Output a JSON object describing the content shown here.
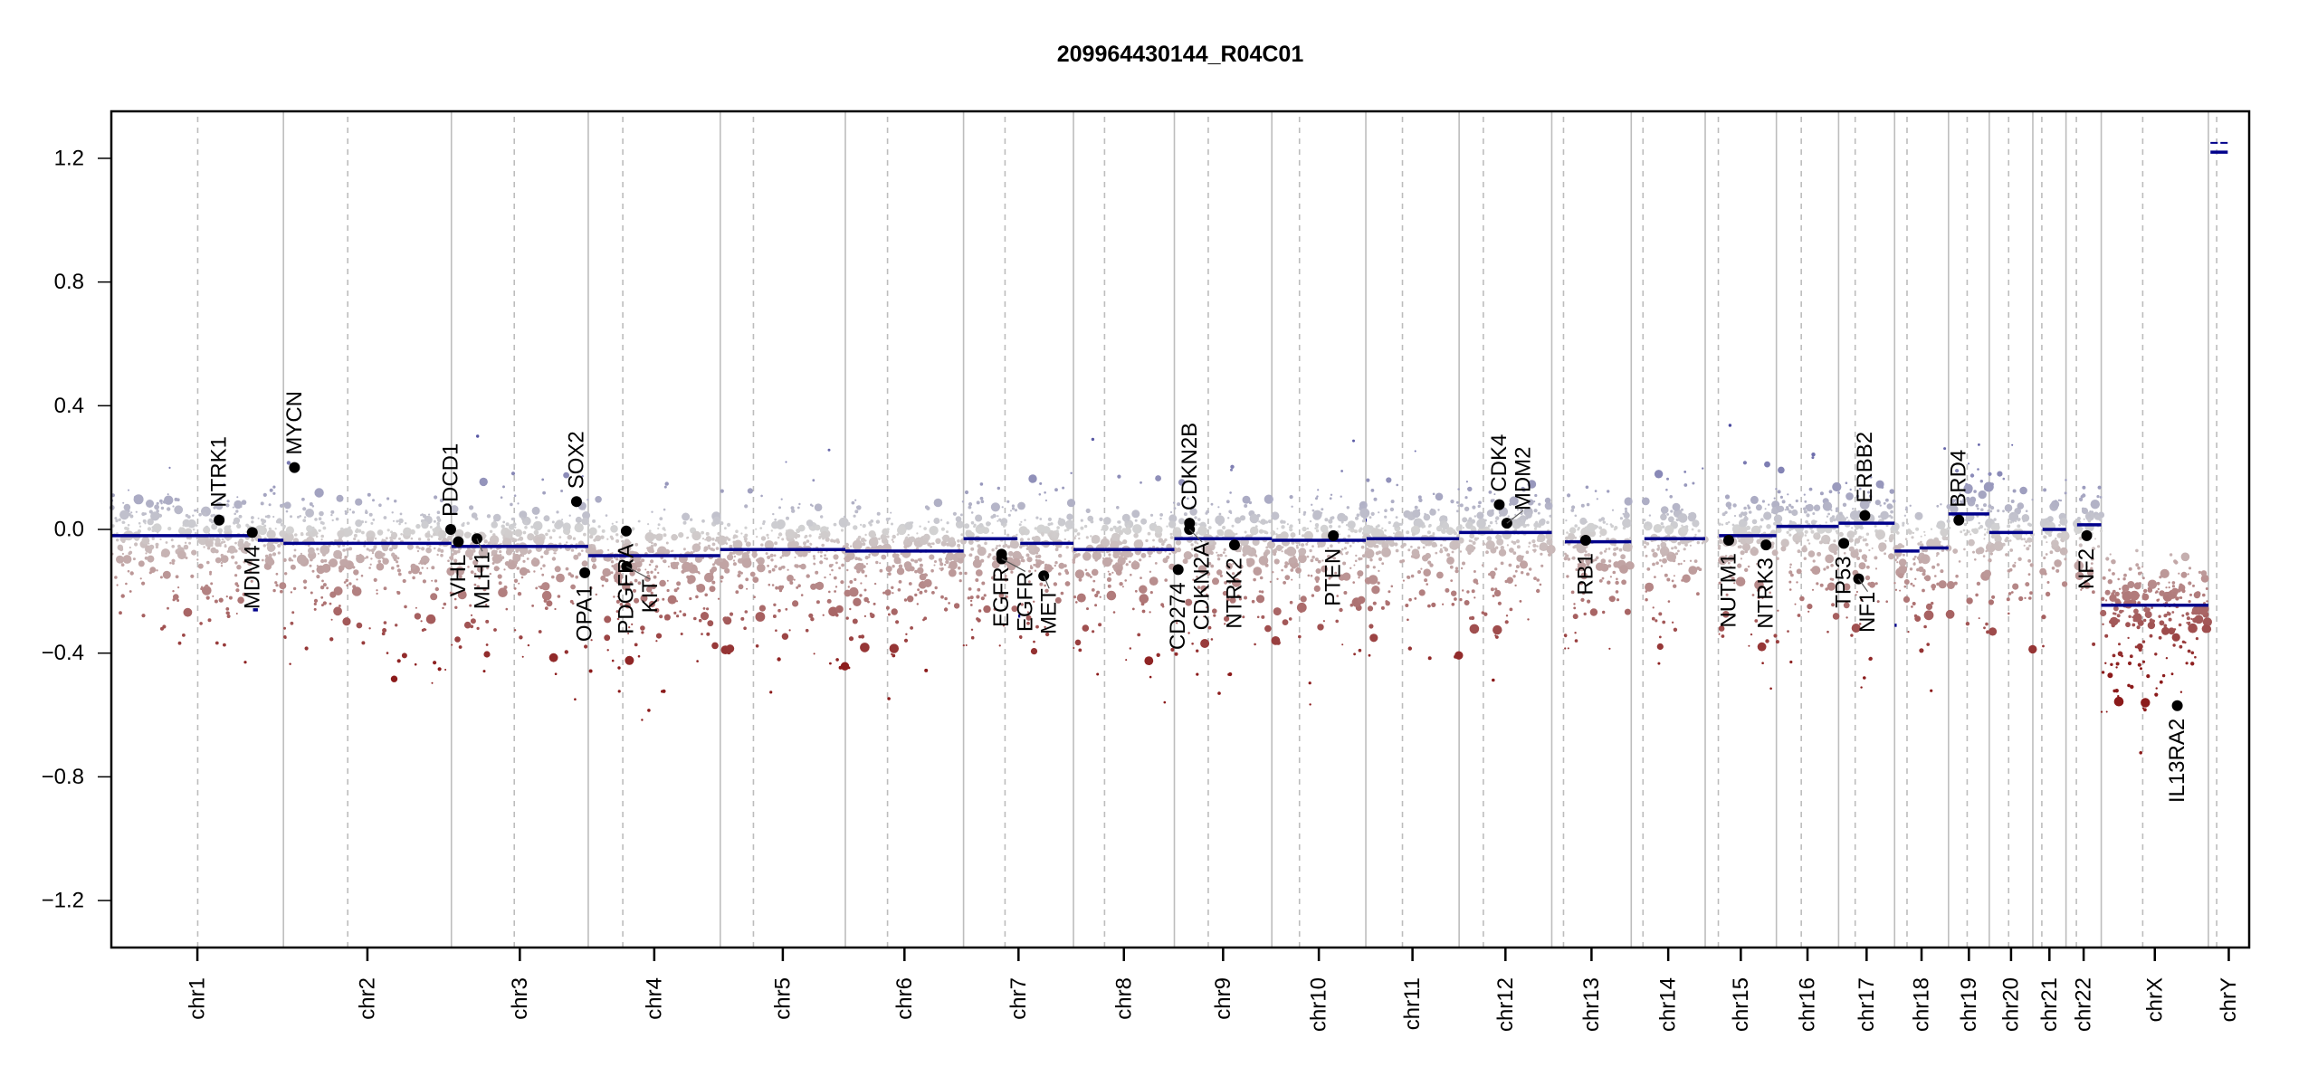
{
  "chart_data": {
    "type": "scatter",
    "title": "209964430144_R04C01",
    "xlabel": "",
    "ylabel": "",
    "ylim": [
      -1.352,
      1.352
    ],
    "yticks": [
      "1.2",
      "0.8",
      "0.4",
      "0.0",
      "-0.4",
      "-0.8",
      "-1.2"
    ],
    "ytick_values": [
      1.2,
      0.8,
      0.4,
      0.0,
      -0.4,
      -0.8,
      -1.2
    ],
    "grid": false,
    "colors": {
      "segment": "#00008B",
      "gain": "#1a1a8c",
      "neutral": "#d3d3d3",
      "loss": "#8b1a1a",
      "boundary": "#bdbdbd",
      "centromere": "#bdbdbd"
    },
    "chromosomes": [
      {
        "name": "chr1",
        "length_mb": 249,
        "centromere_mb": 125
      },
      {
        "name": "chr2",
        "length_mb": 243,
        "centromere_mb": 93
      },
      {
        "name": "chr3",
        "length_mb": 198,
        "centromere_mb": 91
      },
      {
        "name": "chr4",
        "length_mb": 191,
        "centromere_mb": 50
      },
      {
        "name": "chr5",
        "length_mb": 181,
        "centromere_mb": 48
      },
      {
        "name": "chr6",
        "length_mb": 171,
        "centromere_mb": 61
      },
      {
        "name": "chr7",
        "length_mb": 159,
        "centromere_mb": 60
      },
      {
        "name": "chr8",
        "length_mb": 146,
        "centromere_mb": 45
      },
      {
        "name": "chr9",
        "length_mb": 141,
        "centromere_mb": 49
      },
      {
        "name": "chr10",
        "length_mb": 136,
        "centromere_mb": 40
      },
      {
        "name": "chr11",
        "length_mb": 135,
        "centromere_mb": 53
      },
      {
        "name": "chr12",
        "length_mb": 134,
        "centromere_mb": 35
      },
      {
        "name": "chr13",
        "length_mb": 115,
        "centromere_mb": 17
      },
      {
        "name": "chr14",
        "length_mb": 107,
        "centromere_mb": 17
      },
      {
        "name": "chr15",
        "length_mb": 103,
        "centromere_mb": 19
      },
      {
        "name": "chr16",
        "length_mb": 90,
        "centromere_mb": 36
      },
      {
        "name": "chr17",
        "length_mb": 81,
        "centromere_mb": 24
      },
      {
        "name": "chr18",
        "length_mb": 78,
        "centromere_mb": 18
      },
      {
        "name": "chr19",
        "length_mb": 59,
        "centromere_mb": 27
      },
      {
        "name": "chr20",
        "length_mb": 63,
        "centromere_mb": 28
      },
      {
        "name": "chr21",
        "length_mb": 48,
        "centromere_mb": 13
      },
      {
        "name": "chr22",
        "length_mb": 51,
        "centromere_mb": 15
      },
      {
        "name": "chrX",
        "length_mb": 155,
        "centromere_mb": 60
      },
      {
        "name": "chrY",
        "length_mb": 59,
        "centromere_mb": 12
      }
    ],
    "segments": [
      {
        "chr": "chr1",
        "start": 0,
        "end": 205,
        "value": -0.02
      },
      {
        "chr": "chr1",
        "start": 205,
        "end": 212,
        "value": -0.26
      },
      {
        "chr": "chr1",
        "start": 212,
        "end": 249,
        "value": -0.035
      },
      {
        "chr": "chr2",
        "start": 0,
        "end": 243,
        "value": -0.045
      },
      {
        "chr": "chr3",
        "start": 0,
        "end": 198,
        "value": -0.055
      },
      {
        "chr": "chr4",
        "start": 0,
        "end": 191,
        "value": -0.085
      },
      {
        "chr": "chr5",
        "start": 0,
        "end": 181,
        "value": -0.065
      },
      {
        "chr": "chr6",
        "start": 0,
        "end": 171,
        "value": -0.07
      },
      {
        "chr": "chr7",
        "start": 0,
        "end": 78,
        "value": -0.03
      },
      {
        "chr": "chr7",
        "start": 79,
        "end": 82,
        "value": -0.28
      },
      {
        "chr": "chr7",
        "start": 82,
        "end": 159,
        "value": -0.045
      },
      {
        "chr": "chr8",
        "start": 0,
        "end": 146,
        "value": -0.065
      },
      {
        "chr": "chr9",
        "start": 0,
        "end": 141,
        "value": -0.03
      },
      {
        "chr": "chr10",
        "start": 0,
        "end": 136,
        "value": -0.035
      },
      {
        "chr": "chr11",
        "start": 0,
        "end": 1,
        "value": 0.03
      },
      {
        "chr": "chr11",
        "start": 1,
        "end": 135,
        "value": -0.03
      },
      {
        "chr": "chr12",
        "start": 0,
        "end": 134,
        "value": -0.01
      },
      {
        "chr": "chr13",
        "start": 19,
        "end": 115,
        "value": -0.04
      },
      {
        "chr": "chr14",
        "start": 19,
        "end": 107,
        "value": -0.03
      },
      {
        "chr": "chr15",
        "start": 20,
        "end": 103,
        "value": -0.02
      },
      {
        "chr": "chr16",
        "start": 0,
        "end": 90,
        "value": 0.01
      },
      {
        "chr": "chr17",
        "start": 0,
        "end": 81,
        "value": 0.02
      },
      {
        "chr": "chr18",
        "start": 0,
        "end": 36,
        "value": -0.07
      },
      {
        "chr": "chr18",
        "start": 0,
        "end": 3,
        "value": -0.31
      },
      {
        "chr": "chr18",
        "start": 36,
        "end": 78,
        "value": -0.06
      },
      {
        "chr": "chr19",
        "start": 0,
        "end": 59,
        "value": 0.05
      },
      {
        "chr": "chr20",
        "start": 0,
        "end": 63,
        "value": -0.01
      },
      {
        "chr": "chr21",
        "start": 14,
        "end": 48,
        "value": 0.0
      },
      {
        "chr": "chr22",
        "start": 16,
        "end": 51,
        "value": 0.015
      },
      {
        "chrX": true,
        "chr": "chrX",
        "start": 0,
        "end": 155,
        "value": -0.245
      },
      {
        "chr": "chrY",
        "start": 3,
        "end": 28,
        "value": 1.22
      },
      {
        "chr": "chrY",
        "start": 3,
        "end": 28,
        "value": 1.25
      }
    ],
    "genes": [
      {
        "name": "NTRK1",
        "chr": "chr1",
        "pos": 156,
        "value": 0.03,
        "label": "above"
      },
      {
        "name": "MDM4",
        "chr": "chr1",
        "pos": 204,
        "value": -0.01,
        "label": "below"
      },
      {
        "name": "MYCN",
        "chr": "chr2",
        "pos": 16,
        "value": 0.2,
        "label": "above"
      },
      {
        "name": "PDCD1",
        "chr": "chr2",
        "pos": 242,
        "value": 0.0,
        "label": "above"
      },
      {
        "name": "VHL",
        "chr": "chr3",
        "pos": 10,
        "value": -0.04,
        "label": "below"
      },
      {
        "name": "MLH1",
        "chr": "chr3",
        "pos": 37,
        "value": -0.03,
        "label": "below"
      },
      {
        "name": "SOX2",
        "chr": "chr3",
        "pos": 181,
        "value": 0.09,
        "label": "above"
      },
      {
        "name": "OPA1",
        "chr": "chr3",
        "pos": 193,
        "value": -0.14,
        "label": "below"
      },
      {
        "name": "PDGFRA",
        "chr": "chr4",
        "pos": 55,
        "value": -0.005,
        "label": "below"
      },
      {
        "name": "KIT",
        "chr": "chr4",
        "pos": 55.5,
        "value": -0.12,
        "label": "below"
      },
      {
        "name": "EGFR",
        "chr": "chr7",
        "pos": 55,
        "value": -0.08,
        "label": "below"
      },
      {
        "name": "EGFR",
        "chr": "chr7",
        "pos": 55.3,
        "value": -0.095,
        "label": "below"
      },
      {
        "name": "MET",
        "chr": "chr7",
        "pos": 116,
        "value": -0.15,
        "label": "below"
      },
      {
        "name": "CD274",
        "chr": "chr9",
        "pos": 5.5,
        "value": -0.13,
        "label": "below"
      },
      {
        "name": "CDKN2A",
        "chr": "chr9",
        "pos": 21.9,
        "value": 0.0,
        "label": "below"
      },
      {
        "name": "CDKN2B",
        "chr": "chr9",
        "pos": 22,
        "value": 0.02,
        "label": "above"
      },
      {
        "name": "NTRK2",
        "chr": "chr9",
        "pos": 87,
        "value": -0.05,
        "label": "below"
      },
      {
        "name": "PTEN",
        "chr": "chr10",
        "pos": 89,
        "value": -0.02,
        "label": "below"
      },
      {
        "name": "CDK4",
        "chr": "chr12",
        "pos": 58,
        "value": 0.08,
        "label": "above"
      },
      {
        "name": "MDM2",
        "chr": "chr12",
        "pos": 69,
        "value": 0.02,
        "label": "above"
      },
      {
        "name": "RB1",
        "chr": "chr13",
        "pos": 49,
        "value": -0.035,
        "label": "below"
      },
      {
        "name": "NUTM1",
        "chr": "chr15",
        "pos": 34,
        "value": -0.035,
        "label": "below"
      },
      {
        "name": "NTRK3",
        "chr": "chr15",
        "pos": 88,
        "value": -0.05,
        "label": "below"
      },
      {
        "name": "TP53",
        "chr": "chr17",
        "pos": 7.5,
        "value": -0.045,
        "label": "below"
      },
      {
        "name": "NF1",
        "chr": "chr17",
        "pos": 29,
        "value": -0.16,
        "label": "below"
      },
      {
        "name": "ERBB2",
        "chr": "chr17",
        "pos": 38,
        "value": 0.045,
        "label": "above"
      },
      {
        "name": "BRD4",
        "chr": "chr19",
        "pos": 15,
        "value": 0.03,
        "label": "above"
      },
      {
        "name": "NF2",
        "chr": "chr22",
        "pos": 30,
        "value": -0.02,
        "label": "below"
      },
      {
        "name": "IL13RA2",
        "chr": "chrX",
        "pos": 110,
        "value": -0.57,
        "label": "below"
      }
    ]
  }
}
